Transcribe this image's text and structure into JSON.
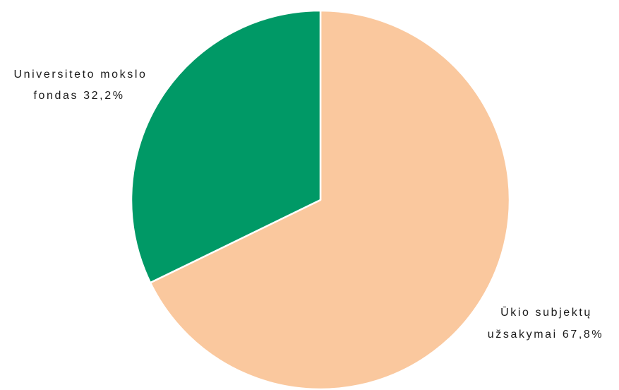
{
  "chart_data": {
    "type": "pie",
    "start": "top",
    "direction": "clockwise",
    "slices": [
      {
        "value": 67.8,
        "color": "#FAC89E",
        "label_lines": [
          "Ūkio subjektų",
          "užsakymai 67,8%"
        ]
      },
      {
        "value": 32.2,
        "color": "#009966",
        "label_lines": [
          "Universiteto mokslo",
          "fondas 32,2%"
        ]
      }
    ]
  }
}
